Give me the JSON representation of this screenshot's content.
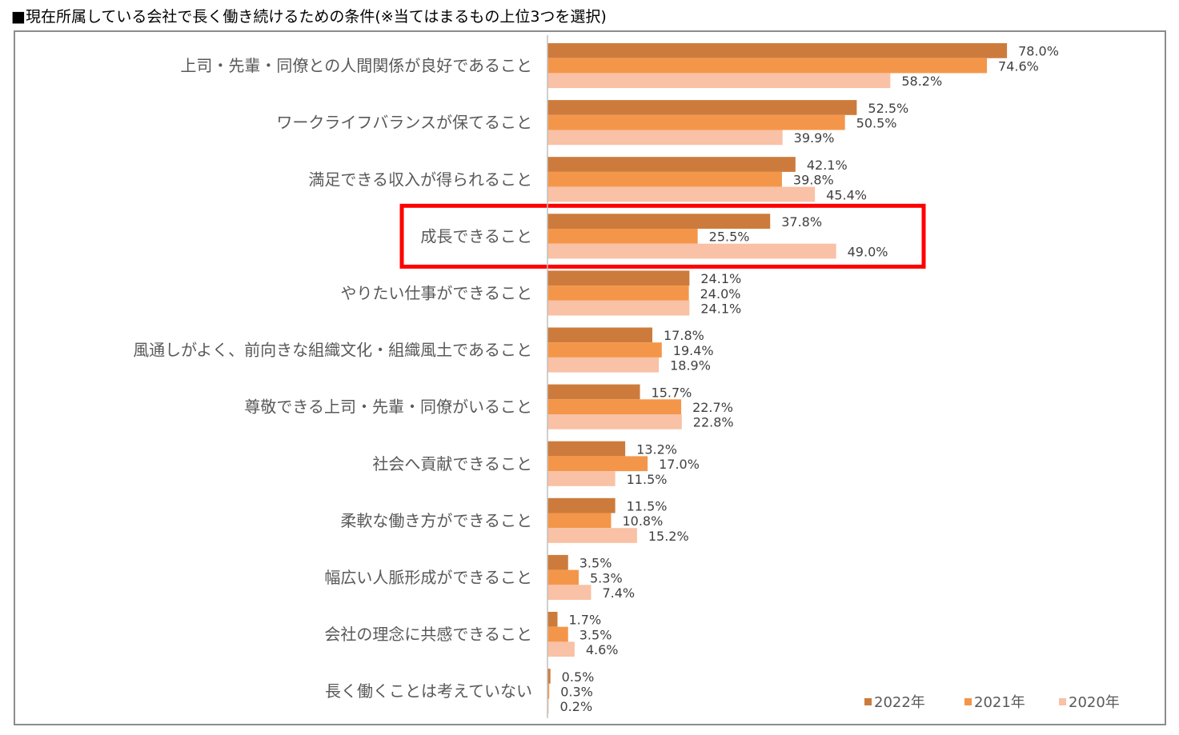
{
  "header": {
    "title": "■現在所属している会社で長く働き続けるための条件(※当てはまるもの上位3つを選択)"
  },
  "colors": {
    "s2022": "#CD7B3C",
    "s2021": "#F4964A",
    "s2020": "#F9C1A5",
    "highlight": "#FF0000",
    "axis": "#BFBFBF"
  },
  "chart_data": {
    "type": "bar",
    "orientation": "horizontal",
    "categories": [
      "上司・先輩・同僚との人間関係が良好であること",
      "ワークライフバランスが保てること",
      "満足できる収入が得られること",
      "成長できること",
      "やりたい仕事ができること",
      "風通しがよく、前向きな組織文化・組織風土であること",
      "尊敬できる上司・先輩・同僚がいること",
      "社会へ貢献できること",
      "柔軟な働き方ができること",
      "幅広い人脈形成ができること",
      "会社の理念に共感できること",
      "長く働くことは考えていない"
    ],
    "series": [
      {
        "name": "2022年",
        "values": [
          78.0,
          52.5,
          42.1,
          37.8,
          24.1,
          17.8,
          15.7,
          13.2,
          11.5,
          3.5,
          1.7,
          0.5
        ]
      },
      {
        "name": "2021年",
        "values": [
          74.6,
          50.5,
          39.8,
          25.5,
          24.0,
          19.4,
          22.7,
          17.0,
          10.8,
          5.3,
          3.5,
          0.3
        ]
      },
      {
        "name": "2020年",
        "values": [
          58.2,
          39.9,
          45.4,
          49.0,
          24.1,
          18.9,
          22.8,
          11.5,
          15.2,
          7.4,
          4.6,
          0.2
        ]
      }
    ],
    "value_format": "%",
    "xlim": [
      0,
      100
    ],
    "grid": false,
    "legend_position": "bottom-right",
    "highlighted_category": "成長できること"
  }
}
